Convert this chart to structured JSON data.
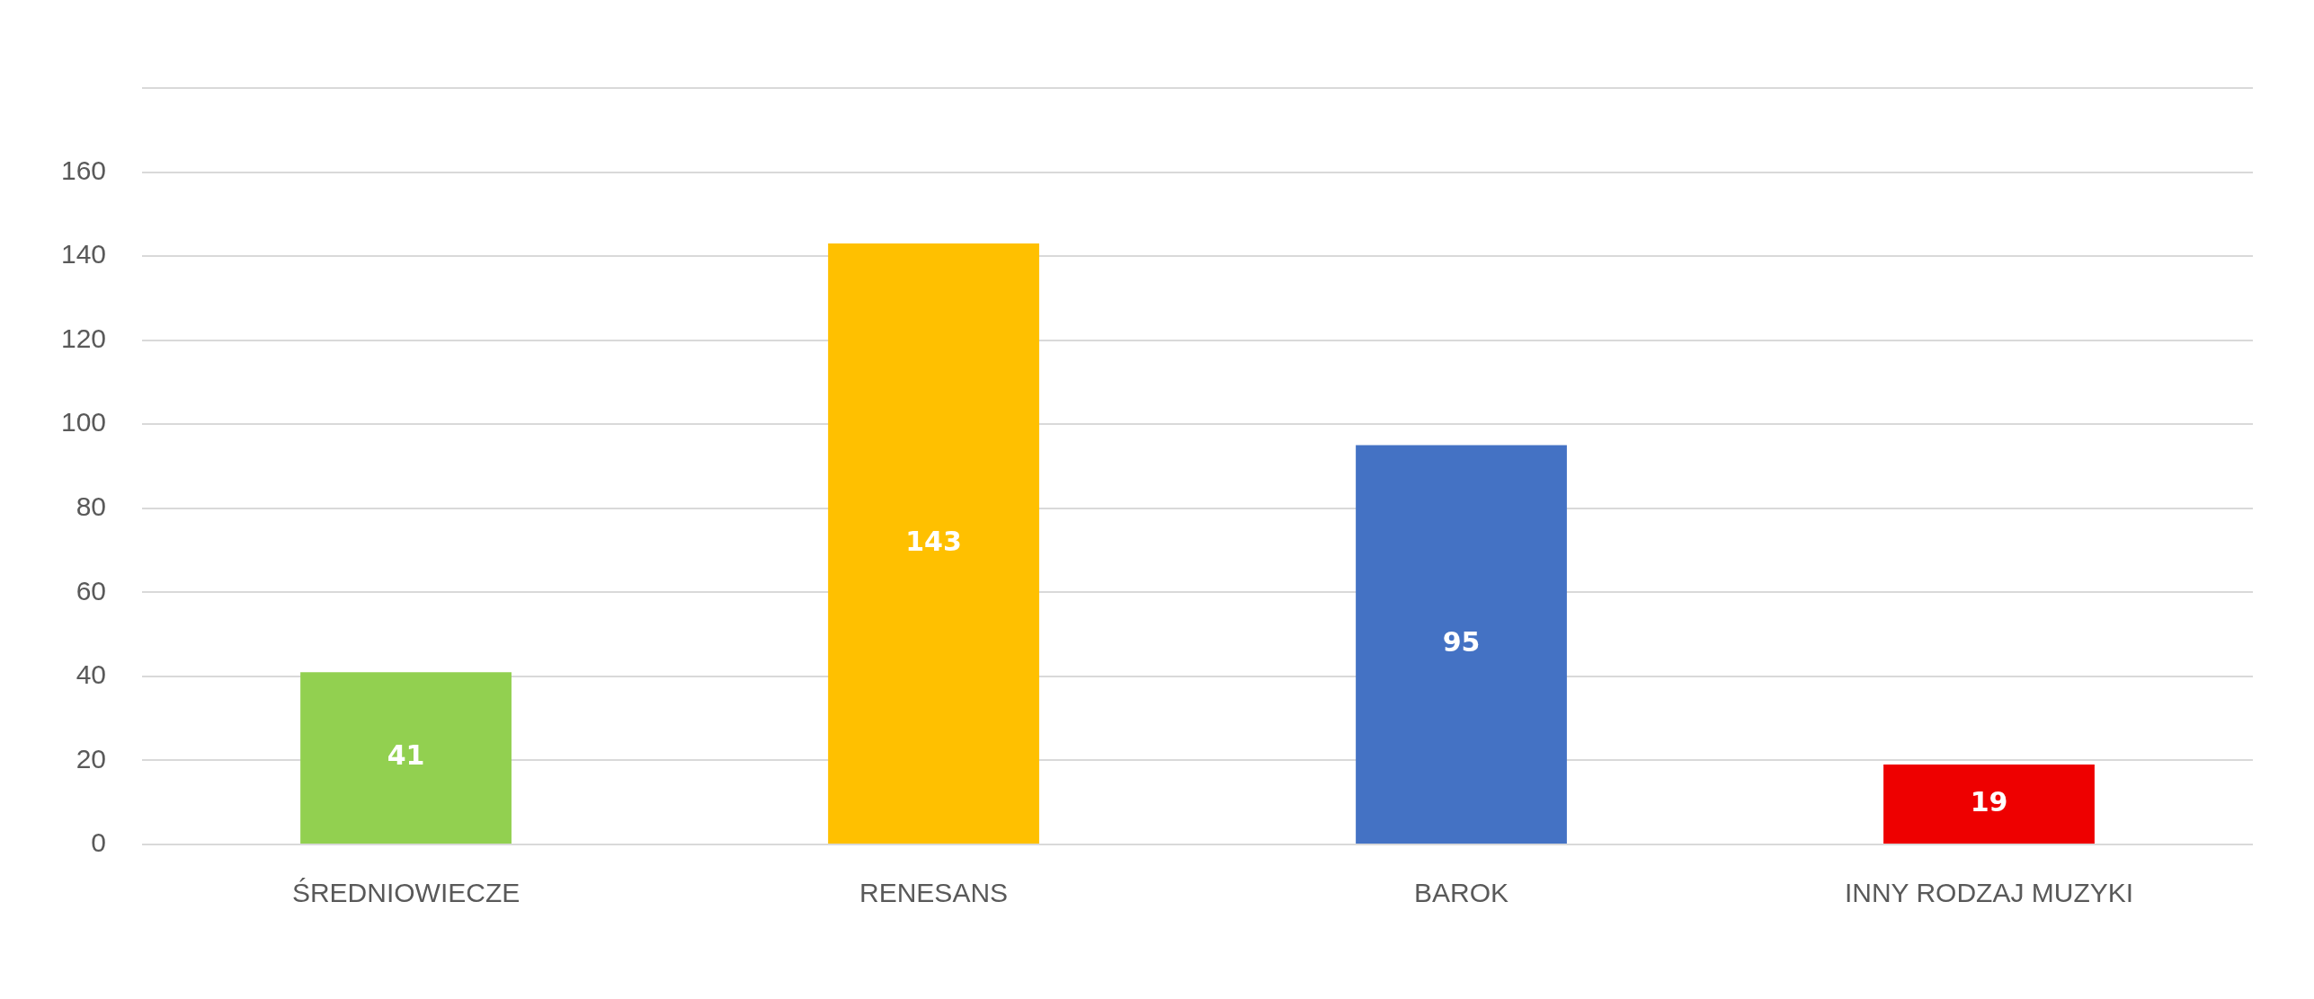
{
  "chart_data": {
    "type": "bar",
    "categories": [
      "ŚREDNIOWIECZE",
      "RENESANS",
      "BAROK",
      "INNY RODZAJ MUZYKI"
    ],
    "values": [
      41,
      143,
      95,
      19
    ],
    "colors": [
      "#92d050",
      "#ffc000",
      "#4472c4",
      "#ee0000"
    ],
    "ylim": [
      0,
      180
    ],
    "yticks": [
      0,
      20,
      40,
      60,
      80,
      100,
      120,
      140,
      160,
      {
        "value": 180,
        "label": null
      }
    ],
    "grid": "y",
    "data_labels": true,
    "legend": false
  }
}
